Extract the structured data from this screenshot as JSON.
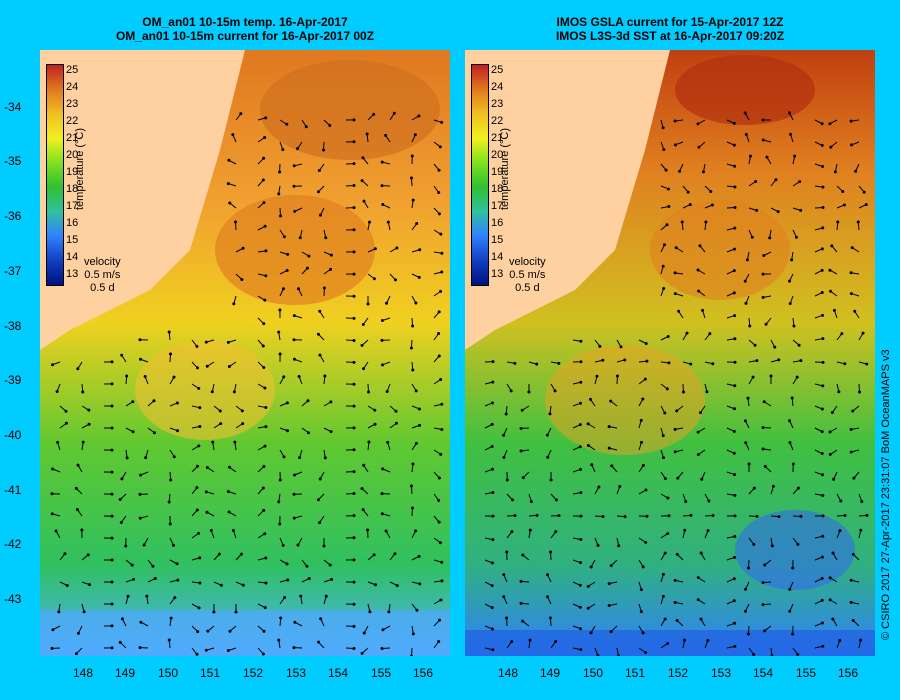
{
  "panels": [
    {
      "title_line1": "OM_an01 10-15m temp. 16-Apr-2017",
      "title_line2": "OM_an01 10-15m current for 16-Apr-2017 00Z",
      "colorbar_label": "temperature (°C)",
      "velocity_label": "velocity",
      "velocity_scale": "0.5 m/s",
      "velocity_duration": "0.5 d"
    },
    {
      "title_line1": "IMOS GSLA current for 15-Apr-2017 12Z",
      "title_line2": "IMOS L3S-3d SST at 16-Apr-2017 09:20Z",
      "colorbar_label": "temperature (°C)",
      "velocity_label": "velocity",
      "velocity_scale": "0.5 m/s",
      "velocity_duration": "0.5 d"
    }
  ],
  "colorbar_ticks": [
    "25",
    "24",
    "23",
    "22",
    "21",
    "20",
    "19",
    "18",
    "17",
    "16",
    "15",
    "14",
    "13"
  ],
  "lat_ticks": [
    "-34",
    "-35",
    "-36",
    "-37",
    "-38",
    "-39",
    "-40",
    "-41",
    "-42",
    "-43"
  ],
  "lon_ticks": [
    "148",
    "149",
    "150",
    "151",
    "152",
    "153",
    "154",
    "155",
    "156"
  ],
  "credit": "© CSIRO 2017   27-Apr-2017 23:31:07 BoM OceanMAPS v3",
  "colors": {
    "background": "#00ccff",
    "land": "#ffd1a0",
    "warm": "#e07820",
    "mid": "#f0c020",
    "green": "#30c030",
    "cool": "#40a0ff"
  }
}
